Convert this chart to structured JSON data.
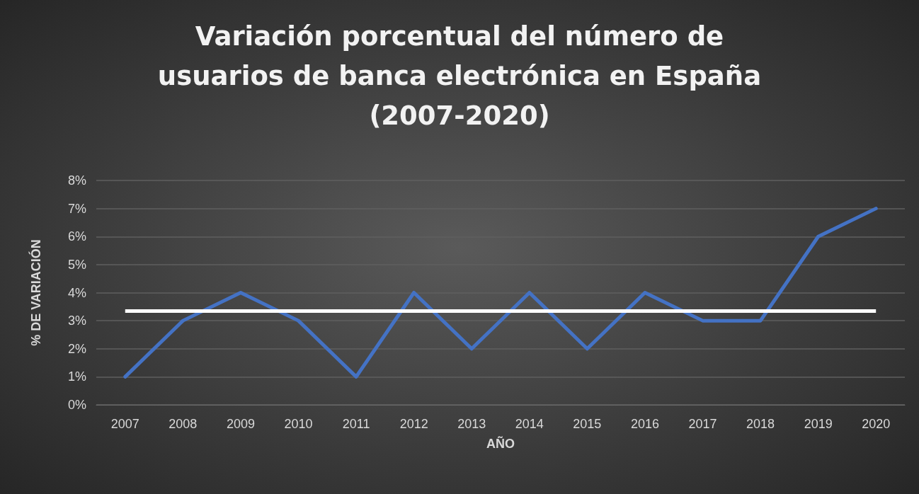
{
  "chart_data": {
    "type": "line",
    "title": "Variación porcentual del número de\nusuarios de banca electrónica en España\n(2007-2020)",
    "xlabel": "AÑO",
    "ylabel": "% DE VARIACIÓN",
    "categories": [
      "2007",
      "2008",
      "2009",
      "2010",
      "2011",
      "2012",
      "2013",
      "2014",
      "2015",
      "2016",
      "2017",
      "2018",
      "2019",
      "2020"
    ],
    "series": [
      {
        "color": "#4472c4",
        "values": [
          1,
          3,
          4,
          3,
          1,
          4,
          2,
          4,
          2,
          4,
          3,
          3,
          6,
          7
        ]
      }
    ],
    "ylim": [
      0,
      8
    ],
    "yticks": [
      {
        "value": 0,
        "label": "0%"
      },
      {
        "value": 1,
        "label": "1%"
      },
      {
        "value": 2,
        "label": "2%"
      },
      {
        "value": 3,
        "label": "3%"
      },
      {
        "value": 4,
        "label": "4%"
      },
      {
        "value": 5,
        "label": "5%"
      },
      {
        "value": 6,
        "label": "6%"
      },
      {
        "value": 7,
        "label": "7%"
      },
      {
        "value": 8,
        "label": "8%"
      }
    ],
    "ref_lines": [
      {
        "axis": "y",
        "value": 3.36,
        "color": "#ffffff"
      }
    ],
    "grid": "y",
    "marker": "none",
    "line_style": "solid"
  }
}
